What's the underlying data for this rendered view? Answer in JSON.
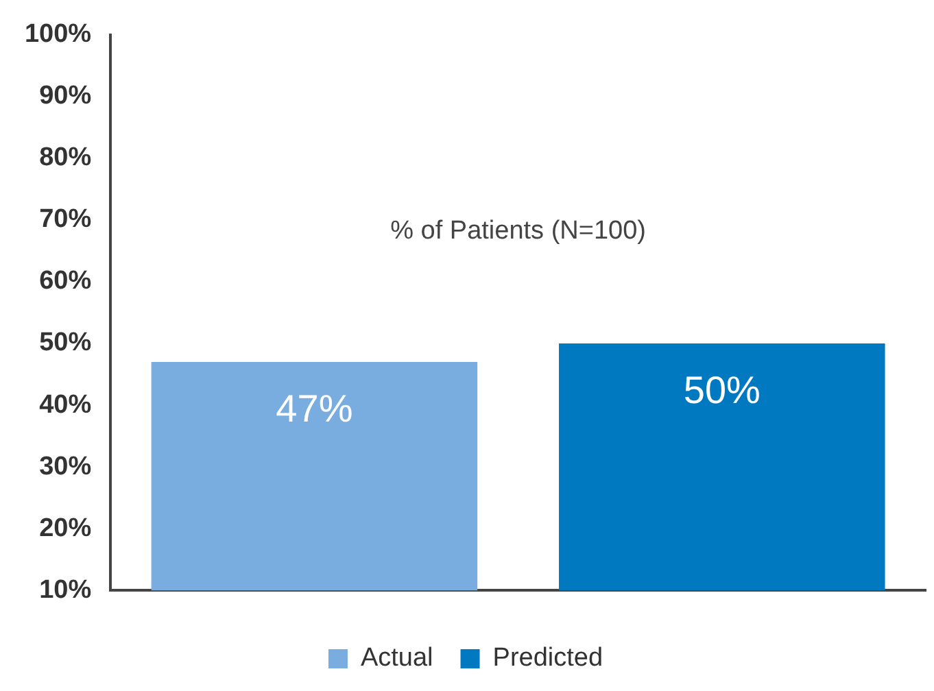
{
  "chart_data": {
    "type": "bar",
    "categories": [
      null,
      null
    ],
    "series": [
      {
        "name": "Actual",
        "color": "#79acdf",
        "values": [
          47,
          null
        ]
      },
      {
        "name": "Predicted",
        "color": "#0079c1",
        "values": [
          null,
          50
        ]
      }
    ],
    "ylim": [
      10,
      100
    ],
    "yticks": [
      {
        "value": 10,
        "label": "10%"
      },
      {
        "value": 20,
        "label": "20%"
      },
      {
        "value": 30,
        "label": "30%"
      },
      {
        "value": 40,
        "label": "40%"
      },
      {
        "value": 50,
        "label": "50%"
      },
      {
        "value": 60,
        "label": "60%"
      },
      {
        "value": 70,
        "label": "70%"
      },
      {
        "value": 80,
        "label": "80%"
      },
      {
        "value": 90,
        "label": "90%"
      },
      {
        "value": 100,
        "label": "100%"
      }
    ],
    "value_labels": [
      "47%",
      "50%"
    ],
    "annotations": [
      "% of Patients (N=100)"
    ],
    "grid": false,
    "legend": "bottom"
  }
}
